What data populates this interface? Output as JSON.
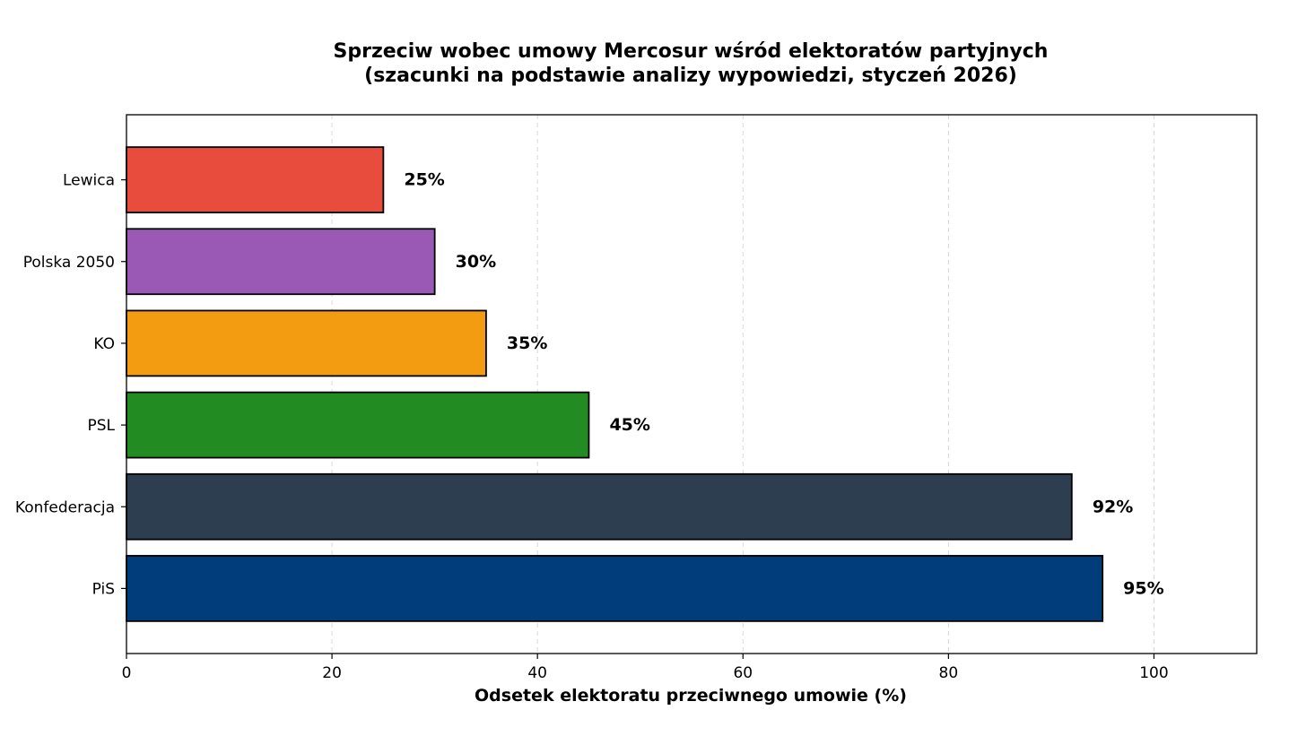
{
  "chart_data": {
    "type": "bar",
    "orientation": "horizontal",
    "title_lines": [
      "Sprzeciw wobec umowy Mercosur wśród elektoratów partyjnych",
      "(szacunki na podstawie analizy wypowiedzi, styczeń 2026)"
    ],
    "categories": [
      "Lewica",
      "Polska 2050",
      "KO",
      "PSL",
      "Konfederacja",
      "PiS"
    ],
    "values": [
      25,
      30,
      35,
      45,
      92,
      95
    ],
    "value_labels": [
      "25%",
      "30%",
      "35%",
      "45%",
      "92%",
      "95%"
    ],
    "colors": [
      "#e74c3c",
      "#9b59b6",
      "#f39c12",
      "#228b22",
      "#2c3e50",
      "#003d7a"
    ],
    "xlabel": "Odsetek elektoratu przeciwnego umowie (%)",
    "ylabel": "",
    "xlim": [
      0,
      110
    ],
    "xticks": [
      0,
      20,
      40,
      60,
      80,
      100
    ],
    "grid": "vertical dashed",
    "legend": "none"
  }
}
